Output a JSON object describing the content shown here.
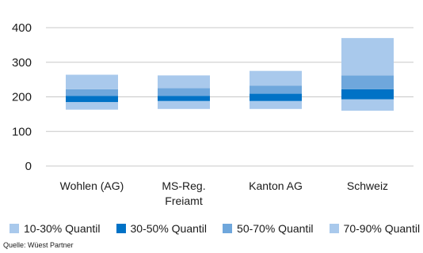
{
  "chart_data": {
    "type": "bar",
    "categories": [
      "Wohlen (AG)",
      "MS-Reg.\nFreiamt",
      "Kanton AG",
      "Schweiz"
    ],
    "ylim": [
      0,
      400
    ],
    "yticks": [
      0,
      100,
      200,
      300,
      400
    ],
    "grid": true,
    "legend_position": "bottom",
    "segments": [
      {
        "name": "10-30% Quantil",
        "color": "#a9c9ec",
        "low": [
          163,
          165,
          165,
          160
        ],
        "high": [
          185,
          188,
          188,
          193
        ]
      },
      {
        "name": "30-50% Quantil",
        "color": "#0072c6",
        "low": [
          185,
          188,
          188,
          193
        ],
        "high": [
          203,
          203,
          209,
          222
        ]
      },
      {
        "name": "50-70% Quantil",
        "color": "#6fa7dc",
        "low": [
          203,
          203,
          209,
          222
        ],
        "high": [
          222,
          225,
          232,
          262
        ]
      },
      {
        "name": "70-90% Quantil",
        "color": "#a9c9ec",
        "low": [
          222,
          225,
          232,
          262
        ],
        "high": [
          264,
          262,
          275,
          370
        ]
      }
    ]
  },
  "legend": {
    "items": [
      {
        "label": "10-30% Quantil",
        "color": "#a9c9ec"
      },
      {
        "label": "30-50% Quantil",
        "color": "#0072c6"
      },
      {
        "label": "50-70% Quantil",
        "color": "#6fa7dc"
      },
      {
        "label": "70-90% Quantil",
        "color": "#a9c9ec"
      }
    ]
  },
  "source": "Quelle: Wüest Partner"
}
